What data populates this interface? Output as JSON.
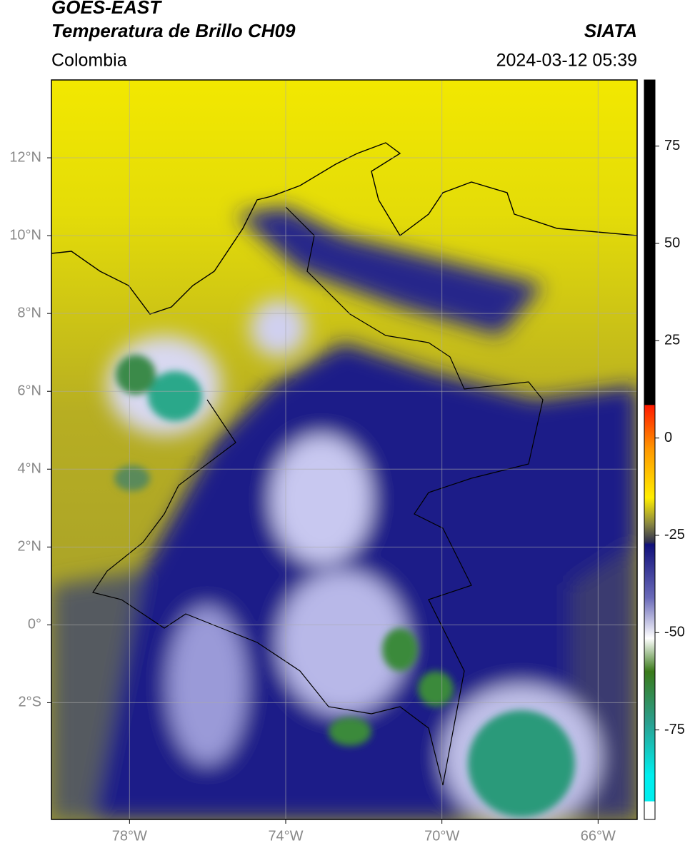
{
  "header": {
    "title": "GOES-EAST",
    "subtitle": "Temperatura de Brillo CH09",
    "source": "SIATA",
    "region": "Colombia",
    "timestamp": "2024-03-12 05:39"
  },
  "map": {
    "xlim": [
      -80,
      -65
    ],
    "ylim": [
      -5,
      14
    ],
    "xticks": [
      {
        "value": -78,
        "label": "78°W"
      },
      {
        "value": -74,
        "label": "74°W"
      },
      {
        "value": -70,
        "label": "70°W"
      },
      {
        "value": -66,
        "label": "66°W"
      }
    ],
    "yticks": [
      {
        "value": 12,
        "label": "12°N"
      },
      {
        "value": 10,
        "label": "10°N"
      },
      {
        "value": 8,
        "label": "8°N"
      },
      {
        "value": 6,
        "label": "6°N"
      },
      {
        "value": 4,
        "label": "4°N"
      },
      {
        "value": 2,
        "label": "2°N"
      },
      {
        "value": 0,
        "label": "0°"
      },
      {
        "value": -2,
        "label": "2°S"
      }
    ],
    "grid": true
  },
  "colorbar": {
    "lim": [
      -98,
      92
    ],
    "ticks": [
      75,
      50,
      25,
      0,
      -25,
      -50,
      -75
    ]
  }
}
